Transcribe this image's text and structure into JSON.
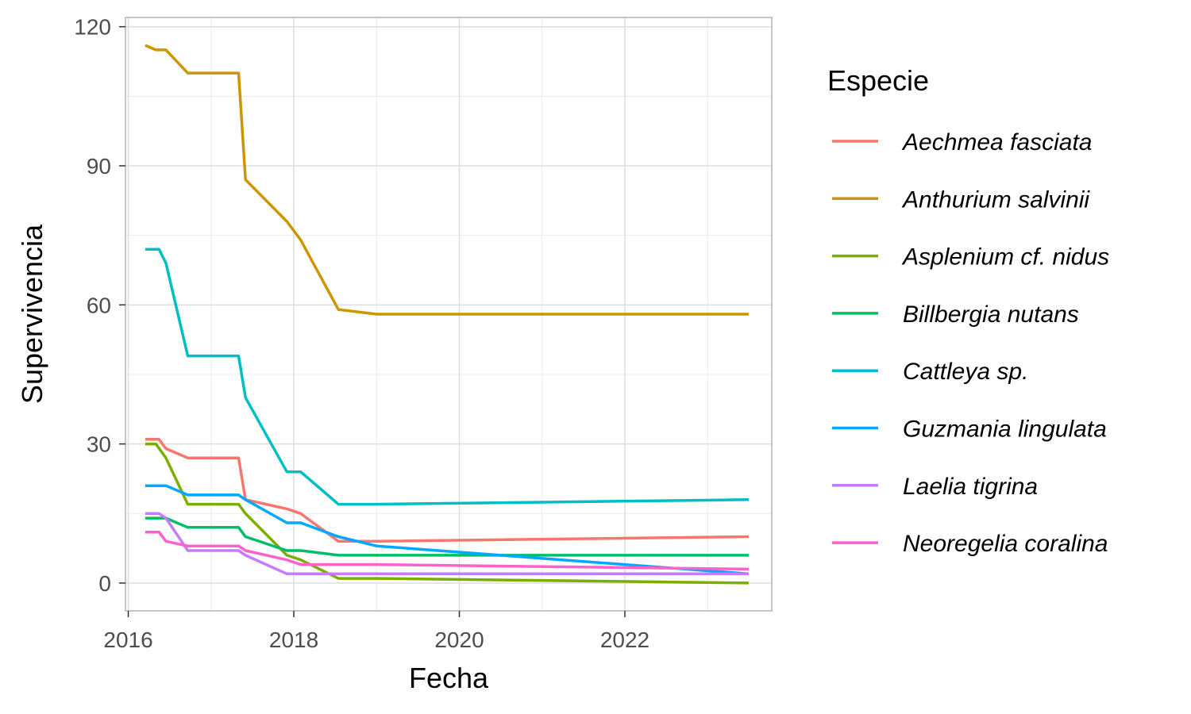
{
  "chart_data": {
    "type": "line",
    "title": "",
    "xlabel": "Fecha",
    "ylabel": "Supervivencia",
    "xlim": [
      "2015-12-19",
      "2023-10-10"
    ],
    "ylim": [
      -6,
      122
    ],
    "x_ticks": [
      "2016",
      "2018",
      "2020",
      "2022"
    ],
    "y_ticks": [
      "0",
      "30",
      "60",
      "90",
      "120"
    ],
    "grid": true,
    "legend": {
      "title": "Especie",
      "position": "right",
      "italic_labels": true
    },
    "series": [
      {
        "name": "Aechmea fasciata",
        "color": "#F8766D",
        "points": [
          [
            "2016-03-15",
            31
          ],
          [
            "2016-05-15",
            31
          ],
          [
            "2016-06-15",
            29
          ],
          [
            "2016-09-20",
            27
          ],
          [
            "2017-05-01",
            27
          ],
          [
            "2017-06-01",
            18
          ],
          [
            "2017-12-01",
            16
          ],
          [
            "2018-02-01",
            15
          ],
          [
            "2018-07-15",
            9
          ],
          [
            "2019-01-01",
            9
          ],
          [
            "2023-06-30",
            10
          ]
        ]
      },
      {
        "name": "Anthurium salvinii",
        "color": "#CD9600",
        "points": [
          [
            "2016-03-15",
            116
          ],
          [
            "2016-05-01",
            115
          ],
          [
            "2016-06-15",
            115
          ],
          [
            "2016-09-20",
            110
          ],
          [
            "2017-05-01",
            110
          ],
          [
            "2017-06-01",
            87
          ],
          [
            "2017-12-01",
            78
          ],
          [
            "2018-02-01",
            74
          ],
          [
            "2018-07-15",
            59
          ],
          [
            "2019-01-01",
            58
          ],
          [
            "2023-06-30",
            58
          ]
        ]
      },
      {
        "name": "Asplenium cf. nidus",
        "color": "#7CAE00",
        "points": [
          [
            "2016-03-15",
            30
          ],
          [
            "2016-05-01",
            30
          ],
          [
            "2016-06-15",
            27
          ],
          [
            "2016-09-20",
            17
          ],
          [
            "2017-05-01",
            17
          ],
          [
            "2017-06-01",
            15
          ],
          [
            "2017-12-01",
            6
          ],
          [
            "2018-02-01",
            5
          ],
          [
            "2018-07-15",
            1
          ],
          [
            "2019-01-01",
            1
          ],
          [
            "2023-06-30",
            0
          ]
        ]
      },
      {
        "name": "Billbergia nutans",
        "color": "#00BE67",
        "points": [
          [
            "2016-03-15",
            14
          ],
          [
            "2016-06-15",
            14
          ],
          [
            "2016-09-20",
            12
          ],
          [
            "2017-05-01",
            12
          ],
          [
            "2017-06-01",
            10
          ],
          [
            "2017-12-01",
            7
          ],
          [
            "2018-02-01",
            7
          ],
          [
            "2018-07-15",
            6
          ],
          [
            "2019-01-01",
            6
          ],
          [
            "2023-06-30",
            6
          ]
        ]
      },
      {
        "name": "Cattleya sp.",
        "color": "#00BFC4",
        "points": [
          [
            "2016-03-15",
            72
          ],
          [
            "2016-05-15",
            72
          ],
          [
            "2016-06-15",
            69
          ],
          [
            "2016-09-20",
            49
          ],
          [
            "2017-05-01",
            49
          ],
          [
            "2017-06-01",
            40
          ],
          [
            "2017-12-01",
            24
          ],
          [
            "2018-02-01",
            24
          ],
          [
            "2018-07-15",
            17
          ],
          [
            "2019-01-01",
            17
          ],
          [
            "2023-06-30",
            18
          ]
        ]
      },
      {
        "name": "Guzmania lingulata",
        "color": "#00A9FF",
        "points": [
          [
            "2016-03-15",
            21
          ],
          [
            "2016-06-15",
            21
          ],
          [
            "2016-09-20",
            19
          ],
          [
            "2017-05-01",
            19
          ],
          [
            "2017-06-01",
            18
          ],
          [
            "2017-12-01",
            13
          ],
          [
            "2018-02-01",
            13
          ],
          [
            "2018-07-15",
            10
          ],
          [
            "2019-01-01",
            8
          ],
          [
            "2023-06-30",
            2
          ]
        ]
      },
      {
        "name": "Laelia tigrina",
        "color": "#C77CFF",
        "points": [
          [
            "2016-03-15",
            15
          ],
          [
            "2016-05-15",
            15
          ],
          [
            "2016-06-15",
            14
          ],
          [
            "2016-09-20",
            7
          ],
          [
            "2017-05-01",
            7
          ],
          [
            "2017-06-01",
            6
          ],
          [
            "2017-12-01",
            2
          ],
          [
            "2018-02-01",
            2
          ],
          [
            "2018-07-15",
            2
          ],
          [
            "2019-01-01",
            2
          ],
          [
            "2023-06-30",
            2
          ]
        ]
      },
      {
        "name": "Neoregelia coralina",
        "color": "#FF61CC",
        "points": [
          [
            "2016-03-15",
            11
          ],
          [
            "2016-05-15",
            11
          ],
          [
            "2016-06-15",
            9
          ],
          [
            "2016-09-20",
            8
          ],
          [
            "2017-05-01",
            8
          ],
          [
            "2017-06-01",
            7
          ],
          [
            "2017-12-01",
            5
          ],
          [
            "2018-02-01",
            4
          ],
          [
            "2018-07-15",
            4
          ],
          [
            "2019-01-01",
            4
          ],
          [
            "2023-06-30",
            3
          ]
        ]
      }
    ]
  }
}
